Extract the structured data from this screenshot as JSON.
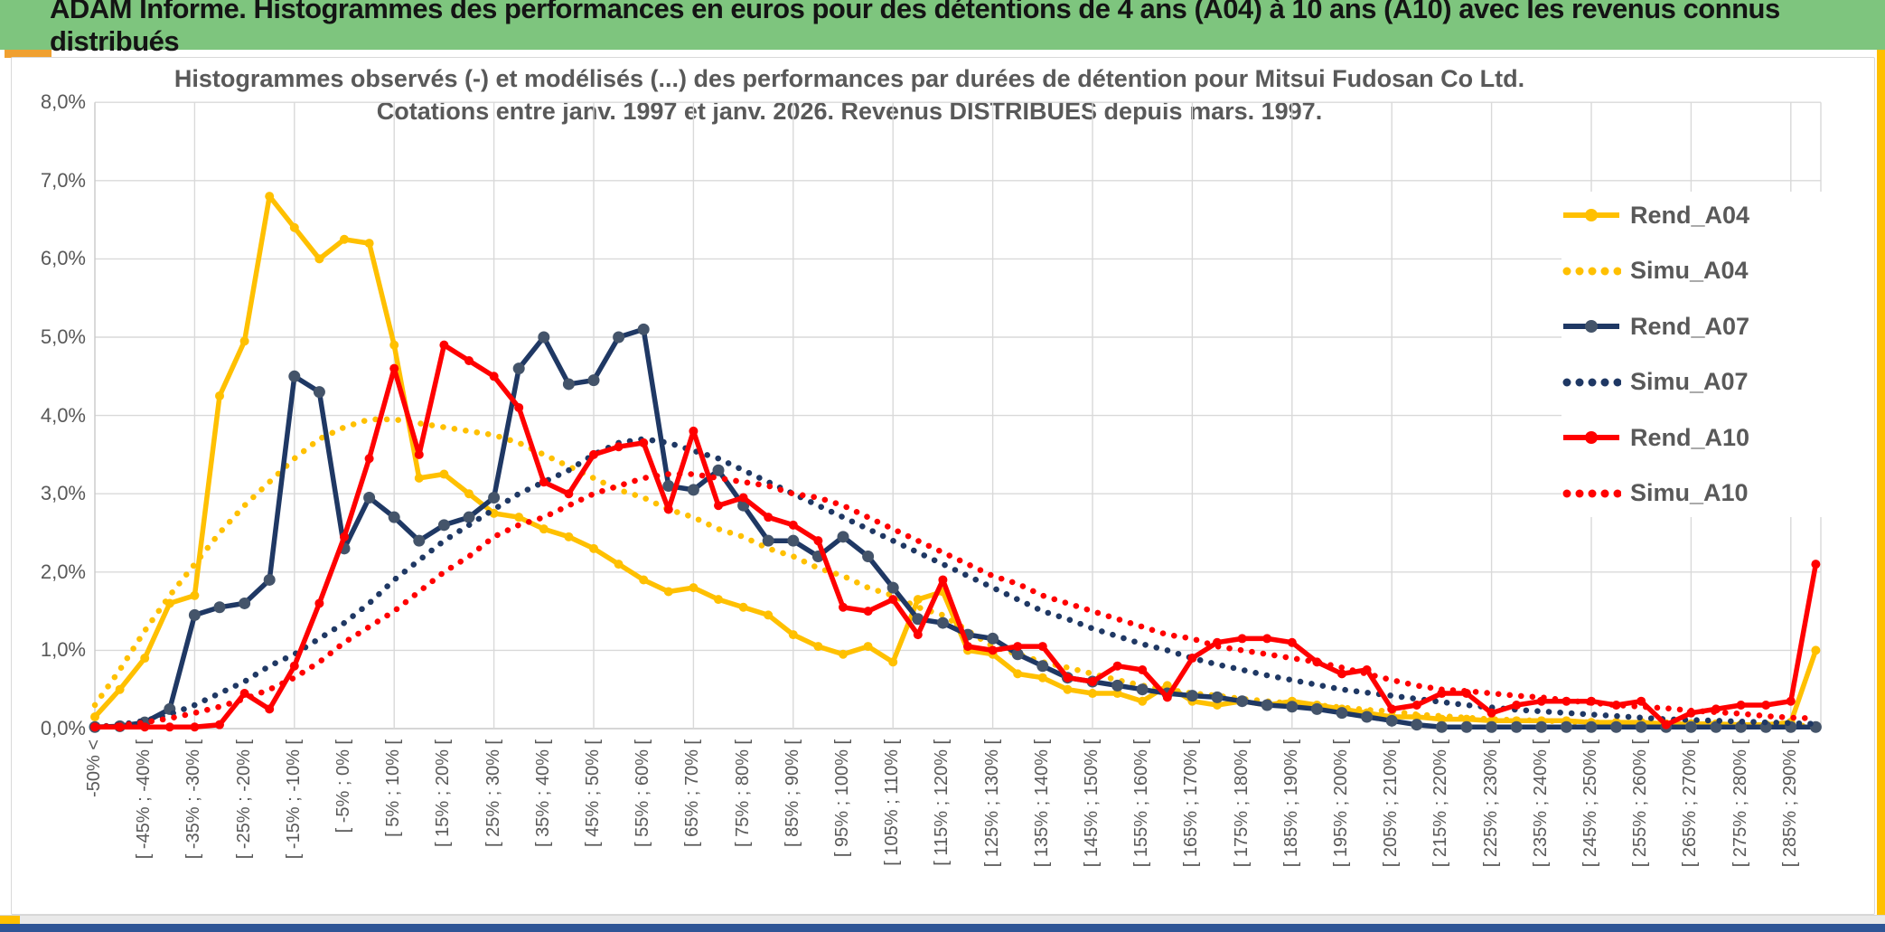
{
  "header": {
    "title": "ADAM Informe. Histogrammes des performances en euros pour des détentions de 4 ans (A04) à 10 ans (A10) avec les revenus connus distribués"
  },
  "colors": {
    "header_green": "#7ec57e",
    "accent_orange": "#f0a030",
    "accent_gold": "#ffc000",
    "bottom_navy": "#2e5596",
    "text_gray": "#595959",
    "grid_gray": "#d9d9d9",
    "axis_gray": "#c9c9c9"
  },
  "chart_data": {
    "type": "line",
    "title_line1": "Histogrammes observés (-) et modélisés (...) des performances par durées de détention pour Mitsui Fudosan Co Ltd.",
    "title_line2": "Cotations entre janv. 1997 et janv. 2026. Revenus DISTRIBUES depuis mars. 1997.",
    "y_axis": {
      "min": 0,
      "max": 8,
      "tick_labels": [
        "8,0%",
        "7,0%",
        "6,0%",
        "5,0%",
        "4,0%",
        "3,0%",
        "2,0%",
        "1,0%",
        "0,0%"
      ]
    },
    "x_axis": {
      "categories_count": 70,
      "label_every_n": 2,
      "gridline_every_n": 4,
      "tick_labels": [
        "-50% <",
        "[ -45% ; -40% [",
        "[ -35% ; -30% [",
        "[ -25% ; -20% [",
        "[ -15% ; -10% [",
        "[ -5% ; 0% [",
        "[ 5% ; 10% [",
        "[ 15% ; 20% [",
        "[ 25% ; 30% [",
        "[ 35% ; 40% [",
        "[ 45% ; 50% [",
        "[ 55% ; 60% [",
        "[ 65% ; 70% [",
        "[ 75% ; 80% [",
        "[ 85% ; 90% [",
        "[ 95% ; 100% [",
        "[ 105% ; 110% [",
        "[ 115% ; 120% [",
        "[ 125% ; 130% [",
        "[ 135% ; 140% [",
        "[ 145% ; 150% [",
        "[ 155% ; 160% [",
        "[ 165% ; 170% [",
        "[ 175% ; 180% [",
        "[ 185% ; 190% [",
        "[ 195% ; 200% [",
        "[ 205% ; 210% [",
        "[ 215% ; 220% [",
        "[ 225% ; 230% [",
        "[ 235% ; 240% [",
        "[ 245% ; 250% [",
        "[ 255% ; 260% [",
        "[ 265% ; 270% [",
        "[ 275% ; 280% [",
        "[ 285% ; 290% ["
      ]
    },
    "legend_position": "right-inside",
    "series": [
      {
        "name": "Rend_A04",
        "style": "solid",
        "color": "#ffc000",
        "marker_color": "#ffc000",
        "values": [
          0.15,
          0.5,
          0.9,
          1.6,
          1.7,
          4.25,
          4.95,
          6.8,
          6.4,
          6.0,
          6.25,
          6.2,
          4.9,
          3.2,
          3.25,
          3.0,
          2.75,
          2.7,
          2.55,
          2.45,
          2.3,
          2.1,
          1.9,
          1.75,
          1.8,
          1.65,
          1.55,
          1.45,
          1.2,
          1.05,
          0.95,
          1.05,
          0.85,
          1.65,
          1.75,
          1.0,
          0.95,
          0.7,
          0.65,
          0.5,
          0.45,
          0.45,
          0.35,
          0.55,
          0.35,
          0.3,
          0.35,
          0.3,
          0.35,
          0.3,
          0.25,
          0.2,
          0.15,
          0.15,
          0.12,
          0.12,
          0.1,
          0.1,
          0.1,
          0.1,
          0.08,
          0.08,
          0.08,
          0.06,
          0.06,
          0.06,
          0.05,
          0.05,
          0.08,
          1.0
        ]
      },
      {
        "name": "Simu_A04",
        "style": "dotted",
        "color": "#ffc000",
        "marker_color": "#ffc000",
        "values": [
          0.3,
          0.75,
          1.25,
          1.7,
          2.1,
          2.5,
          2.85,
          3.15,
          3.45,
          3.7,
          3.85,
          3.95,
          3.95,
          3.9,
          3.85,
          3.8,
          3.75,
          3.65,
          3.5,
          3.35,
          3.2,
          3.05,
          2.95,
          2.8,
          2.7,
          2.55,
          2.45,
          2.3,
          2.2,
          2.05,
          1.95,
          1.8,
          1.7,
          1.55,
          1.45,
          1.25,
          1.05,
          0.95,
          0.85,
          0.78,
          0.7,
          0.62,
          0.55,
          0.5,
          0.45,
          0.42,
          0.38,
          0.35,
          0.32,
          0.3,
          0.27,
          0.24,
          0.22,
          0.18,
          0.16,
          0.14,
          0.12,
          0.11,
          0.1,
          0.09,
          0.08,
          0.07,
          0.06,
          0.06,
          0.05,
          0.05,
          0.04,
          0.04,
          0.04,
          0.03
        ]
      },
      {
        "name": "Rend_A07",
        "style": "solid",
        "color": "#1f3864",
        "marker_color": "#44546a",
        "values": [
          0.02,
          0.03,
          0.08,
          0.25,
          1.45,
          1.55,
          1.6,
          1.9,
          4.5,
          4.3,
          2.3,
          2.95,
          2.7,
          2.4,
          2.6,
          2.7,
          2.95,
          4.6,
          5.0,
          4.4,
          4.45,
          5.0,
          5.1,
          3.1,
          3.05,
          3.3,
          2.85,
          2.4,
          2.4,
          2.2,
          2.45,
          2.2,
          1.8,
          1.4,
          1.35,
          1.2,
          1.15,
          0.95,
          0.8,
          0.65,
          0.6,
          0.55,
          0.5,
          0.45,
          0.42,
          0.4,
          0.35,
          0.3,
          0.28,
          0.25,
          0.2,
          0.15,
          0.1,
          0.05,
          0.02,
          0.02,
          0.02,
          0.02,
          0.02,
          0.02,
          0.02,
          0.02,
          0.02,
          0.02,
          0.02,
          0.02,
          0.02,
          0.02,
          0.02,
          0.02
        ]
      },
      {
        "name": "Simu_A07",
        "style": "dotted",
        "color": "#1f3864",
        "marker_color": "#1f3864",
        "values": [
          0.02,
          0.05,
          0.1,
          0.18,
          0.3,
          0.45,
          0.6,
          0.8,
          0.95,
          1.15,
          1.35,
          1.6,
          1.9,
          2.15,
          2.4,
          2.6,
          2.8,
          3.0,
          3.15,
          3.3,
          3.5,
          3.65,
          3.7,
          3.65,
          3.55,
          3.45,
          3.3,
          3.15,
          3.0,
          2.85,
          2.7,
          2.55,
          2.4,
          2.25,
          2.1,
          1.95,
          1.8,
          1.65,
          1.5,
          1.4,
          1.28,
          1.18,
          1.08,
          1.0,
          0.9,
          0.82,
          0.75,
          0.68,
          0.62,
          0.56,
          0.5,
          0.46,
          0.42,
          0.38,
          0.34,
          0.3,
          0.27,
          0.24,
          0.22,
          0.2,
          0.18,
          0.16,
          0.14,
          0.12,
          0.11,
          0.1,
          0.09,
          0.08,
          0.07,
          0.06
        ]
      },
      {
        "name": "Rend_A10",
        "style": "solid",
        "color": "#ff0000",
        "marker_color": "#ff0000",
        "values": [
          0.02,
          0.02,
          0.02,
          0.02,
          0.02,
          0.05,
          0.45,
          0.25,
          0.8,
          1.6,
          2.45,
          3.45,
          4.6,
          3.5,
          4.9,
          4.7,
          4.5,
          4.1,
          3.15,
          3.0,
          3.5,
          3.6,
          3.65,
          2.8,
          3.8,
          2.85,
          2.95,
          2.7,
          2.6,
          2.4,
          1.55,
          1.5,
          1.65,
          1.2,
          1.9,
          1.05,
          1.0,
          1.05,
          1.05,
          0.65,
          0.6,
          0.8,
          0.75,
          0.4,
          0.9,
          1.1,
          1.15,
          1.15,
          1.1,
          0.85,
          0.7,
          0.75,
          0.25,
          0.3,
          0.45,
          0.45,
          0.2,
          0.3,
          0.35,
          0.35,
          0.35,
          0.3,
          0.35,
          0.05,
          0.2,
          0.25,
          0.3,
          0.3,
          0.35,
          2.1
        ]
      },
      {
        "name": "Simu_A10",
        "style": "dotted",
        "color": "#ff0000",
        "marker_color": "#ff0000",
        "values": [
          0.02,
          0.04,
          0.08,
          0.13,
          0.2,
          0.28,
          0.38,
          0.5,
          0.65,
          0.85,
          1.1,
          1.3,
          1.5,
          1.75,
          2.0,
          2.2,
          2.45,
          2.6,
          2.7,
          2.85,
          3.0,
          3.1,
          3.2,
          3.25,
          3.25,
          3.2,
          3.15,
          3.1,
          3.0,
          2.95,
          2.85,
          2.7,
          2.55,
          2.4,
          2.25,
          2.1,
          1.95,
          1.85,
          1.7,
          1.6,
          1.5,
          1.4,
          1.3,
          1.2,
          1.15,
          1.05,
          1.0,
          0.95,
          0.9,
          0.85,
          0.78,
          0.7,
          0.62,
          0.55,
          0.5,
          0.48,
          0.45,
          0.42,
          0.4,
          0.36,
          0.33,
          0.3,
          0.28,
          0.26,
          0.23,
          0.21,
          0.19,
          0.16,
          0.14,
          0.13
        ]
      }
    ]
  }
}
